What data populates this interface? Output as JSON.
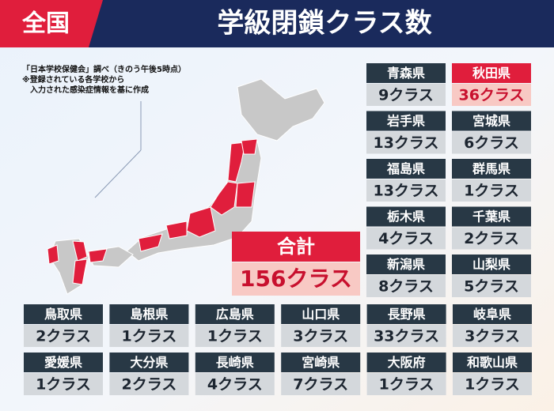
{
  "header": {
    "tag": "全国",
    "title": "学級閉鎖クラス数"
  },
  "notes": [
    "「日本学校保健会」調べ（きのう午後5時点）",
    "※登録されている各学校から",
    "　入力された感染症情報を基に作成"
  ],
  "total": {
    "label": "合計",
    "value": "156クラス"
  },
  "prefectures": [
    {
      "name": "青森県",
      "value": "9クラス"
    },
    {
      "name": "秋田県",
      "value": "36クラス",
      "highlight": true
    },
    {
      "name": "岩手県",
      "value": "13クラス"
    },
    {
      "name": "宮城県",
      "value": "6クラス"
    },
    {
      "name": "福島県",
      "value": "13クラス"
    },
    {
      "name": "群馬県",
      "value": "1クラス"
    },
    {
      "name": "栃木県",
      "value": "4クラス"
    },
    {
      "name": "千葉県",
      "value": "2クラス"
    },
    {
      "name": "新潟県",
      "value": "8クラス"
    },
    {
      "name": "山梨県",
      "value": "5クラス"
    },
    {
      "name": "鳥取県",
      "value": "2クラス"
    },
    {
      "name": "島根県",
      "value": "1クラス"
    },
    {
      "name": "広島県",
      "value": "1クラス"
    },
    {
      "name": "山口県",
      "value": "3クラス"
    },
    {
      "name": "長野県",
      "value": "33クラス"
    },
    {
      "name": "岐阜県",
      "value": "3クラス"
    },
    {
      "name": "愛媛県",
      "value": "1クラス"
    },
    {
      "name": "大分県",
      "value": "2クラス"
    },
    {
      "name": "長崎県",
      "value": "4クラス"
    },
    {
      "name": "宮崎県",
      "value": "7クラス"
    },
    {
      "name": "大阪府",
      "value": "1クラス"
    },
    {
      "name": "和歌山県",
      "value": "1クラス"
    }
  ]
}
